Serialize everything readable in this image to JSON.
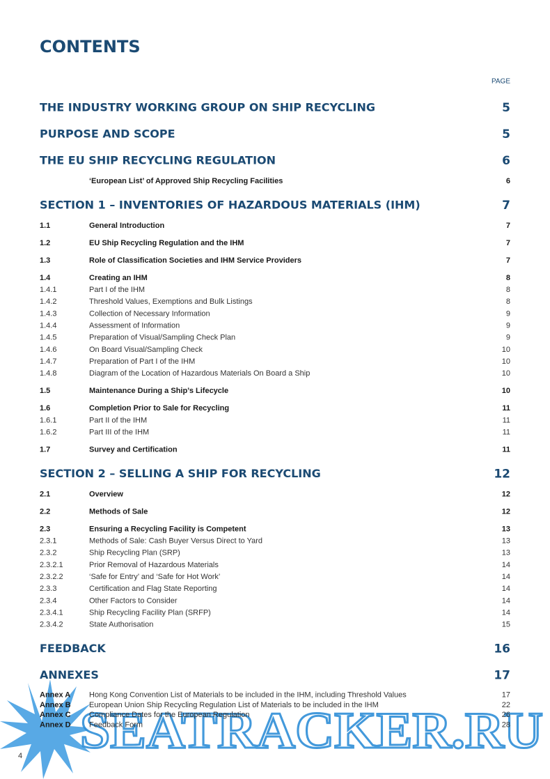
{
  "title": "CONTENTS",
  "page_label": "PAGE",
  "sections": [
    {
      "title": "THE INDUSTRY WORKING GROUP ON SHIP RECYCLING",
      "page": 5
    },
    {
      "title": "PURPOSE AND SCOPE",
      "page": 5
    },
    {
      "title": "THE EU SHIP RECYCLING REGULATION",
      "page": 6,
      "items": [
        {
          "title": "‘European List’ of Approved Ship Recycling Facilities",
          "page": 6
        }
      ]
    },
    {
      "title": "SECTION 1 – INVENTORIES OF HAZARDOUS MATERIALS (IHM)",
      "page": 7,
      "items": [
        {
          "number": "1.1",
          "title": "General Introduction",
          "page": 7
        },
        {
          "number": "1.2",
          "title": "EU Ship Recycling Regulation and the IHM",
          "page": 7
        },
        {
          "number": "1.3",
          "title": "Role of Classification Societies and IHM Service Providers",
          "page": 7
        },
        {
          "number": "1.4",
          "title": "Creating an IHM",
          "page": 8,
          "subitems": [
            {
              "number": "1.4.1",
              "title": "Part I of the IHM",
              "page": 8
            },
            {
              "number": "1.4.2",
              "title": "Threshold Values, Exemptions and Bulk Listings",
              "page": 8
            },
            {
              "number": "1.4.3",
              "title": "Collection of Necessary Information",
              "page": 9
            },
            {
              "number": "1.4.4",
              "title": "Assessment of Information",
              "page": 9
            },
            {
              "number": "1.4.5",
              "title": "Preparation of Visual/Sampling Check Plan",
              "page": 9
            },
            {
              "number": "1.4.6",
              "title": "On Board Visual/Sampling Check",
              "page": 10
            },
            {
              "number": "1.4.7",
              "title": "Preparation of Part I of the IHM",
              "page": 10
            },
            {
              "number": "1.4.8",
              "title": "Diagram of the Location of Hazardous Materials On Board a Ship",
              "page": 10
            }
          ]
        },
        {
          "number": "1.5",
          "title": "Maintenance During a Ship’s Lifecycle",
          "page": 10
        },
        {
          "number": "1.6",
          "title": "Completion Prior to Sale for Recycling",
          "page": 11,
          "subitems": [
            {
              "number": "1.6.1",
              "title": "Part II of the IHM",
              "page": 11
            },
            {
              "number": "1.6.2",
              "title": "Part III of the IHM",
              "page": 11
            }
          ]
        },
        {
          "number": "1.7",
          "title": "Survey and Certification",
          "page": 11
        }
      ]
    },
    {
      "title": "SECTION 2 – SELLING A SHIP FOR RECYCLING",
      "page": 12,
      "items": [
        {
          "number": "2.1",
          "title": "Overview",
          "page": 12
        },
        {
          "number": "2.2",
          "title": "Methods of Sale",
          "page": 12
        },
        {
          "number": "2.3",
          "title": "Ensuring a Recycling Facility is Competent",
          "page": 13,
          "subitems": [
            {
              "number": "2.3.1",
              "title": "Methods of Sale: Cash Buyer Versus Direct to Yard",
              "page": 13
            },
            {
              "number": "2.3.2",
              "title": "Ship Recycling Plan (SRP)",
              "page": 13
            },
            {
              "number": "2.3.2.1",
              "title": "Prior Removal of Hazardous Materials",
              "page": 14
            },
            {
              "number": "2.3.2.2",
              "title": "‘Safe for Entry’ and ‘Safe for Hot Work’",
              "page": 14
            },
            {
              "number": "2.3.3",
              "title": "Certification and Flag State Reporting",
              "page": 14
            },
            {
              "number": "2.3.4",
              "title": "Other Factors to Consider",
              "page": 14
            },
            {
              "number": "2.3.4.1",
              "title": "Ship Recycling Facility Plan (SRFP)",
              "page": 14
            },
            {
              "number": "2.3.4.2",
              "title": "State Authorisation",
              "page": 15
            }
          ]
        }
      ]
    },
    {
      "title": "FEEDBACK",
      "page": 16
    },
    {
      "title": "ANNEXES",
      "page": 17,
      "annexes": [
        {
          "number": "Annex A",
          "title": "Hong Kong Convention List of Materials to be included in the IHM, including Threshold Values",
          "page": 17
        },
        {
          "number": "Annex B",
          "title": "European Union Ship Recycling Regulation List of Materials to be included in the IHM",
          "page": 22
        },
        {
          "number": "Annex C",
          "title": "Compliance Dates for the European Regulation",
          "page": 26
        },
        {
          "number": "Annex D",
          "title": "Feedback Form",
          "page": 28
        }
      ]
    }
  ],
  "watermark": "SEATRACKER.RU",
  "page_number": "4"
}
